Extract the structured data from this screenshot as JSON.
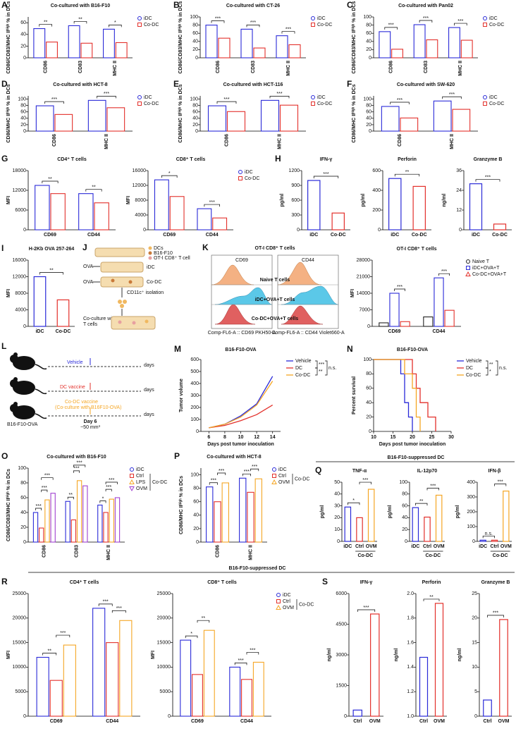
{
  "figure": {
    "headers": [
      "B16-F10-suppressed DC",
      "B16-F10-suppressed DC"
    ],
    "j": {
      "letter": "J",
      "legend": [
        "DCs",
        "B16-F10",
        "OT-I CD8⁺ T cell"
      ],
      "ova": [
        "OVA",
        "OVA"
      ],
      "dishes": [
        "iDC",
        "Co-DC"
      ],
      "isolation": "CD11c⁺ isolation",
      "coculture": [
        "Co-culture with",
        "T cells"
      ]
    },
    "k": {
      "letter": "K",
      "title": "OT-I CD8⁺ T cells",
      "markers": [
        "CD69",
        "CD44"
      ],
      "rows": [
        "Naive T cells",
        "iDC+OVA+T cells",
        "Co-DC+OVA+T cells"
      ],
      "axes": [
        "Comp-FL6-A :: CD69 PKH50-A",
        "Comp-FL6-A :: CD44 Violet660-A"
      ]
    },
    "l": {
      "letter": "L",
      "groups": [
        "Vehicle",
        "DC vaccine",
        "Co-DC vaccine"
      ],
      "note": "(Co-culture with B16F10-OVA)",
      "days": [
        "days",
        "days",
        "days"
      ],
      "model": "B16-F10-OVA",
      "day": "Day 6",
      "volume": "~50 mm³"
    }
  },
  "chart_data": [
    {
      "type": "bar",
      "letter": "A",
      "title": "Co-cultured with B16-F10",
      "ylabel": "CD86/CD83/MHC IIʰⁱᵍʰ % in DCs",
      "categories": [
        "CD86",
        "CD83",
        "MHC II"
      ],
      "series": [
        {
          "name": "iDC",
          "color": "#2a2ad8",
          "values": [
            50,
            55,
            49
          ]
        },
        {
          "name": "Co-DC",
          "color": "#e3302b",
          "values": [
            27,
            25,
            26
          ]
        }
      ],
      "ylim": [
        0,
        70
      ],
      "yticks": [
        0,
        20,
        40,
        60
      ],
      "sig": [
        [
          "**"
        ],
        [
          "**"
        ],
        [
          "*"
        ]
      ]
    },
    {
      "type": "bar",
      "letter": "B",
      "title": "Co-cultured with CT-26",
      "ylabel": "CD86/CD83/MHC IIʰⁱᵍʰ % in DCs",
      "categories": [
        "CD86",
        "CD83",
        "MHC II"
      ],
      "series": [
        {
          "name": "iDC",
          "color": "#2a2ad8",
          "values": [
            80,
            70,
            54
          ]
        },
        {
          "name": "Co-DC",
          "color": "#e3302b",
          "values": [
            48,
            24,
            32
          ]
        }
      ],
      "ylim": [
        0,
        100
      ],
      "yticks": [
        0,
        20,
        40,
        60,
        80,
        100
      ],
      "sig": [
        [
          "***"
        ],
        [
          "***"
        ],
        [
          "***"
        ]
      ]
    },
    {
      "type": "bar",
      "letter": "C",
      "title": "Co-cultured with Pan02",
      "ylabel": "CD86/CD83/MHC IIʰⁱᵍʰ % in DCs",
      "categories": [
        "CD86",
        "CD83",
        "MHC II"
      ],
      "series": [
        {
          "name": "iDC",
          "color": "#2a2ad8",
          "values": [
            64,
            81,
            74
          ]
        },
        {
          "name": "Co-DC",
          "color": "#e3302b",
          "values": [
            21,
            44,
            43
          ]
        }
      ],
      "ylim": [
        0,
        100
      ],
      "yticks": [
        0,
        20,
        40,
        60,
        80,
        100
      ],
      "sig": [
        [
          "***"
        ],
        [
          "***"
        ],
        [
          "***"
        ]
      ]
    },
    {
      "type": "bar",
      "letter": "D",
      "title": "Co-cultured with HCT-8",
      "ylabel": "CD86/MHC IIʰⁱᵍʰ % in DCs",
      "categories": [
        "CD86",
        "MHC II"
      ],
      "series": [
        {
          "name": "iDC",
          "color": "#2a2ad8",
          "values": [
            79,
            96
          ]
        },
        {
          "name": "Co-DC",
          "color": "#e3302b",
          "values": [
            52,
            73
          ]
        }
      ],
      "ylim": [
        0,
        110
      ],
      "yticks": [
        0,
        20,
        40,
        60,
        80,
        100
      ],
      "sig": [
        [
          "***"
        ],
        [
          "***"
        ]
      ]
    },
    {
      "type": "bar",
      "letter": "E",
      "title": "Co-cultured with HCT-116",
      "ylabel": "CD86/MHC IIʰⁱᵍʰ % in DCs",
      "categories": [
        "CD86",
        "MHC II"
      ],
      "series": [
        {
          "name": "iDC",
          "color": "#2a2ad8",
          "values": [
            79,
            96
          ]
        },
        {
          "name": "Co-DC",
          "color": "#e3302b",
          "values": [
            61,
            81
          ]
        }
      ],
      "ylim": [
        0,
        110
      ],
      "yticks": [
        0,
        20,
        40,
        60,
        80,
        100
      ],
      "sig": [
        [
          "***"
        ],
        [
          "***"
        ]
      ]
    },
    {
      "type": "bar",
      "letter": "F",
      "title": "Co-cultured with SW-620",
      "ylabel": "CD86/MHC IIʰⁱᵍʰ % in DCs",
      "categories": [
        "CD86",
        "MHC II"
      ],
      "series": [
        {
          "name": "iDC",
          "color": "#2a2ad8",
          "values": [
            77,
            94
          ]
        },
        {
          "name": "Co-DC",
          "color": "#e3302b",
          "values": [
            41,
            68
          ]
        }
      ],
      "ylim": [
        0,
        110
      ],
      "yticks": [
        0,
        20,
        40,
        60,
        80,
        100
      ],
      "sig": [
        [
          "***"
        ],
        [
          "***"
        ]
      ]
    },
    {
      "type": "bar",
      "letter": "G",
      "title": "CD4⁺ T cells",
      "ylabel": "MFI",
      "categories": [
        "CD69",
        "CD44"
      ],
      "series": [
        {
          "color": "#2a2ad8",
          "values": [
            13500,
            11000
          ]
        },
        {
          "color": "#e3302b",
          "values": [
            11000,
            8200
          ]
        }
      ],
      "ylim": [
        0,
        18000
      ],
      "yticks": [
        0,
        6000,
        12000,
        18000
      ],
      "sig": [
        [
          "**"
        ],
        [
          "**"
        ]
      ]
    },
    {
      "type": "bar",
      "title": "CD8⁺ T cells",
      "ylabel": "MFI",
      "categories": [
        "CD69",
        "CD44"
      ],
      "series": [
        {
          "name": "iDC",
          "color": "#2a2ad8",
          "values": [
            13500,
            5700
          ]
        },
        {
          "name": "Co-DC",
          "color": "#e3302b",
          "values": [
            9000,
            3200
          ]
        }
      ],
      "ylim": [
        0,
        16000
      ],
      "yticks": [
        0,
        4000,
        8000,
        12000,
        16000
      ],
      "sig": [
        [
          "*"
        ],
        [
          "***"
        ]
      ]
    },
    {
      "type": "bar",
      "letter": "H",
      "title": "IFN-γ",
      "ylabel": "pg/ml",
      "categories": [
        "iDC",
        "Co-DC"
      ],
      "values": [
        1000,
        340
      ],
      "colors": [
        "#2a2ad8",
        "#e3302b"
      ],
      "ylim": [
        0,
        1200
      ],
      "yticks": [
        0,
        300,
        600,
        900,
        1200
      ],
      "sig": [
        "***"
      ]
    },
    {
      "type": "bar",
      "title": "Perforin",
      "ylabel": "pg/ml",
      "categories": [
        "iDC",
        "Co-DC"
      ],
      "values": [
        520,
        440
      ],
      "colors": [
        "#2a2ad8",
        "#e3302b"
      ],
      "ylim": [
        0,
        600
      ],
      "yticks": [
        0,
        200,
        400,
        600
      ],
      "sig": [
        "**"
      ]
    },
    {
      "type": "bar",
      "title": "Granzyme B",
      "ylabel": "ng/ml",
      "categories": [
        "iDC",
        "Co-DC"
      ],
      "values": [
        28,
        3.5
      ],
      "colors": [
        "#2a2ad8",
        "#e3302b"
      ],
      "ylim": [
        0,
        36
      ],
      "yticks": [
        0,
        12,
        24,
        36
      ],
      "sig": [
        "***"
      ]
    },
    {
      "type": "bar",
      "letter": "I",
      "title": "H-2Kb OVA 257-264",
      "ylabel": "MFI",
      "categories": [
        "iDC",
        "Co-DC"
      ],
      "values": [
        12000,
        6400
      ],
      "colors": [
        "#2a2ad8",
        "#e3302b"
      ],
      "ylim": [
        0,
        16000
      ],
      "yticks": [
        0,
        4000,
        8000,
        12000,
        16000
      ],
      "sig": [
        "**"
      ]
    },
    {
      "type": "bar",
      "title": "OT-I CD8⁺ T cells",
      "ylabel": "MFI",
      "categories": [
        "CD69",
        "CD44"
      ],
      "series": [
        {
          "name": "Naive T",
          "color": "#222222",
          "values": [
            1500,
            4000
          ]
        },
        {
          "name": "iDC+OVA+T",
          "color": "#2a2ad8",
          "values": [
            14000,
            20500
          ]
        },
        {
          "name": "Co-DC+OVA+T",
          "color": "#e3302b",
          "values": [
            2000,
            6800
          ]
        }
      ],
      "ylim": [
        0,
        28000
      ],
      "yticks": [
        0,
        7000,
        14000,
        21000,
        28000
      ],
      "sig": [
        [
          "***"
        ],
        [
          "***"
        ]
      ]
    },
    {
      "type": "line",
      "letter": "M",
      "title": "B16-F10-OVA",
      "xlabel": "Days post tumor inoculation",
      "ylabel": "Tumor volume",
      "x": [
        6,
        8,
        10,
        12,
        14
      ],
      "series": [
        {
          "name": "Vehicle",
          "color": "#2a2ad8",
          "values": [
            30,
            60,
            130,
            230,
            460
          ]
        },
        {
          "name": "DC",
          "color": "#e3302b",
          "values": [
            30,
            50,
            90,
            140,
            220
          ]
        },
        {
          "name": "Co-DC",
          "color": "#f5a623",
          "values": [
            30,
            60,
            120,
            220,
            420
          ]
        }
      ],
      "xlim": [
        5,
        15
      ],
      "xticks": [
        6,
        8,
        10,
        12,
        14
      ],
      "ylim": [
        0,
        600
      ],
      "yticks": [
        0,
        100,
        200,
        300,
        400,
        500,
        600
      ],
      "legend_sig": [
        "***",
        "**",
        "n.s."
      ]
    },
    {
      "type": "line",
      "letter": "N",
      "title": "B16-F10-OVA",
      "xlabel": "Days post tumor inoculation",
      "ylabel": "Percent survival",
      "step": true,
      "series": [
        {
          "name": "Vehicle",
          "color": "#2a2ad8",
          "x": [
            10,
            15,
            17,
            18,
            19,
            20
          ],
          "values": [
            100,
            100,
            80,
            40,
            20,
            0
          ]
        },
        {
          "name": "DC",
          "color": "#e3302b",
          "x": [
            10,
            18,
            20,
            21,
            22,
            24,
            26
          ],
          "values": [
            100,
            100,
            80,
            60,
            40,
            20,
            0
          ]
        },
        {
          "name": "Co-DC",
          "color": "#f5a623",
          "x": [
            10,
            17,
            18,
            20,
            21,
            22
          ],
          "values": [
            100,
            100,
            80,
            60,
            20,
            0
          ]
        }
      ],
      "xlim": [
        10,
        30
      ],
      "xticks": [
        10,
        15,
        20,
        25,
        30
      ],
      "ylim": [
        0,
        100
      ],
      "yticks": [
        0,
        20,
        40,
        60,
        80,
        100
      ],
      "legend_sig": [
        "**",
        "*",
        "n.s."
      ]
    },
    {
      "type": "bar",
      "letter": "O",
      "title": "Co-cultured with B16-F10",
      "ylabel": "CD86/CD83/MHC IIʰⁱᵍʰ % in DCs",
      "categories": [
        "CD86",
        "CD83",
        "MHC II"
      ],
      "series": [
        {
          "name": "iDC",
          "color": "#2a2ad8",
          "values": [
            40,
            55,
            50
          ]
        },
        {
          "name": "Ctrl",
          "color": "#e3302b",
          "values": [
            19,
            30,
            40
          ]
        },
        {
          "name": "LPS",
          "color": "#f5a623",
          "values": [
            57,
            83,
            58
          ]
        },
        {
          "name": "OVM",
          "color": "#a040d0",
          "values": [
            66,
            76,
            60
          ]
        }
      ],
      "ylim": [
        0,
        100
      ],
      "yticks": [
        0,
        20,
        40,
        60,
        80,
        100
      ],
      "sig": [
        [
          "***",
          "***",
          "***"
        ],
        [
          "**",
          "***",
          "***"
        ],
        [
          "*",
          "***",
          "***"
        ]
      ],
      "group_label": "Co-DC"
    },
    {
      "type": "bar",
      "letter": "P",
      "title": "Co-cultured with HCT-8",
      "ylabel": "CD86/MHC IIʰⁱᵍʰ % in DCs",
      "categories": [
        "CD86",
        "MHC II"
      ],
      "series": [
        {
          "name": "iDC",
          "color": "#2a2ad8",
          "values": [
            82,
            95
          ]
        },
        {
          "name": "Ctrl",
          "color": "#e3302b",
          "values": [
            60,
            74
          ]
        },
        {
          "name": "OVM",
          "color": "#f5a623",
          "values": [
            88,
            94
          ]
        }
      ],
      "ylim": [
        0,
        110
      ],
      "yticks": [
        0,
        20,
        40,
        60,
        80,
        100
      ],
      "sig": [
        [
          "***",
          "***"
        ],
        [
          "***",
          "***"
        ]
      ],
      "group_label": "Co-DC"
    },
    {
      "type": "bar",
      "letter": "Q",
      "title": "TNF-α",
      "ylabel": "pg/ml",
      "categories": [
        "iDC",
        "Ctrl",
        "OVM"
      ],
      "values": [
        29,
        20,
        44
      ],
      "colors": [
        "#2a2ad8",
        "#e3302b",
        "#f5a623"
      ],
      "ylim": [
        0,
        50
      ],
      "yticks": [
        0,
        10,
        20,
        30,
        40,
        50
      ],
      "sig": [
        "*",
        "***"
      ],
      "group_label": "Co-DC"
    },
    {
      "type": "bar",
      "title": "IL-12p70",
      "ylabel": "pg/ml",
      "categories": [
        "iDC",
        "Ctrl",
        "OVM"
      ],
      "values": [
        57,
        41,
        78
      ],
      "colors": [
        "#2a2ad8",
        "#e3302b",
        "#f5a623"
      ],
      "ylim": [
        0,
        100
      ],
      "yticks": [
        0,
        20,
        40,
        60,
        80,
        100
      ],
      "sig": [
        "**",
        "***"
      ],
      "group_label": "Co-DC"
    },
    {
      "type": "bar",
      "title": "IFN-β",
      "ylabel": "pg/ml",
      "categories": [
        "iDC",
        "Ctrl",
        "OVM"
      ],
      "values": [
        8,
        8,
        340
      ],
      "colors": [
        "#2a2ad8",
        "#e3302b",
        "#f5a623"
      ],
      "ylim": [
        0,
        400
      ],
      "yticks": [
        0,
        100,
        200,
        300,
        400
      ],
      "sig": [
        "n.s.",
        "***"
      ],
      "group_label": "Co-DC"
    },
    {
      "type": "bar",
      "letter": "R",
      "title": "CD4⁺ T cells",
      "ylabel": "MFI",
      "categories": [
        "CD69",
        "CD44"
      ],
      "series": [
        {
          "color": "#2a2ad8",
          "values": [
            12000,
            22000
          ]
        },
        {
          "color": "#e3302b",
          "values": [
            7300,
            15000
          ]
        },
        {
          "color": "#f5a623",
          "values": [
            14500,
            19500
          ]
        }
      ],
      "ylim": [
        0,
        25000
      ],
      "yticks": [
        0,
        5000,
        10000,
        15000,
        20000,
        25000
      ],
      "sig": [
        [
          "**",
          "***"
        ],
        [
          "***",
          "***"
        ]
      ]
    },
    {
      "type": "bar",
      "title": "CD8⁺ T cells",
      "ylabel": "MFI",
      "categories": [
        "CD69",
        "CD44"
      ],
      "series": [
        {
          "name": "iDC",
          "color": "#2a2ad8",
          "values": [
            15500,
            10000
          ]
        },
        {
          "name": "Ctrl",
          "color": "#e3302b",
          "values": [
            8500,
            7500
          ]
        },
        {
          "name": "OVM",
          "color": "#f5a623",
          "values": [
            17500,
            11000
          ]
        }
      ],
      "ylim": [
        0,
        25000
      ],
      "yticks": [
        0,
        5000,
        10000,
        15000,
        20000,
        25000
      ],
      "sig": [
        [
          "*",
          "**"
        ],
        [
          "***",
          "***"
        ]
      ],
      "group_label": "Co-DC"
    },
    {
      "type": "bar",
      "letter": "S",
      "title": "IFN-γ",
      "ylabel": "ng/ml",
      "categories": [
        "Ctrl",
        "OVM"
      ],
      "values": [
        300,
        5000
      ],
      "colors": [
        "#2a2ad8",
        "#e3302b"
      ],
      "ylim": [
        0,
        6000
      ],
      "yticks": [
        0,
        1500,
        3000,
        4500,
        6000
      ],
      "sig": [
        "***"
      ]
    },
    {
      "type": "bar",
      "title": "Perforin",
      "ylabel": "ng/ml",
      "categories": [
        "Ctrl",
        "OVM"
      ],
      "values": [
        1.48,
        1.92
      ],
      "colors": [
        "#2a2ad8",
        "#e3302b"
      ],
      "ylim": [
        1,
        2
      ],
      "yticks": [
        {
          "value": 1,
          "label": "1.0"
        },
        1.2,
        1.4,
        1.6,
        1.8,
        {
          "value": 2,
          "label": "2.0"
        }
      ],
      "sig": [
        "**"
      ]
    },
    {
      "type": "bar",
      "title": "Granzyme B",
      "ylabel": "ng/ml",
      "categories": [
        "Ctrl",
        "OVM"
      ],
      "values": [
        3.3,
        19.7
      ],
      "colors": [
        "#2a2ad8",
        "#e3302b"
      ],
      "ylim": [
        0,
        25
      ],
      "yticks": [
        0,
        5,
        10,
        15,
        20,
        25
      ],
      "sig": [
        "***"
      ]
    }
  ]
}
